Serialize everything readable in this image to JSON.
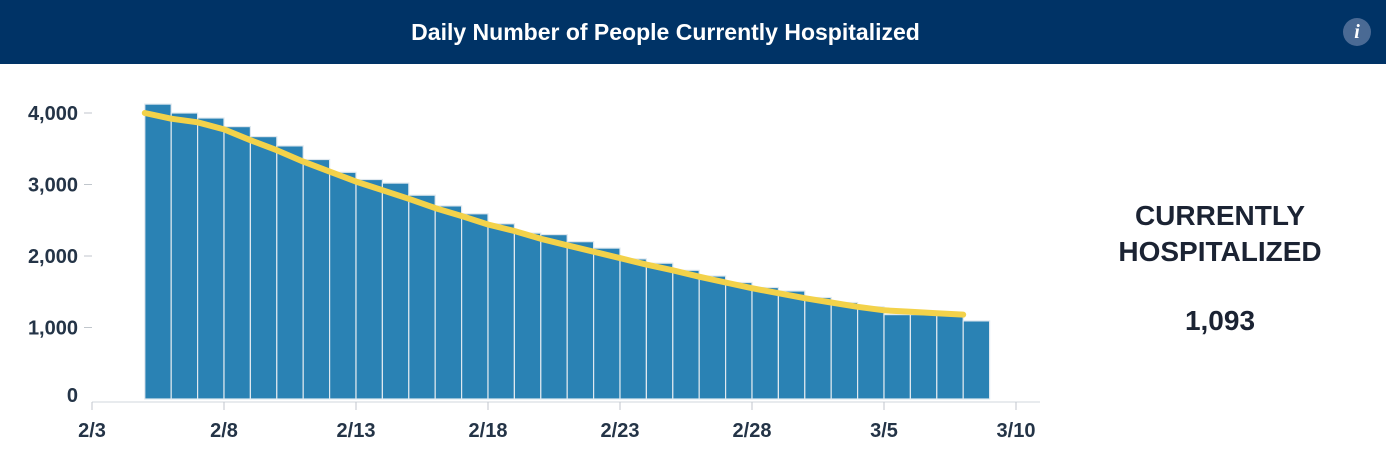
{
  "header": {
    "title": "Daily Number of People Currently Hospitalized",
    "info_icon": "info-icon",
    "info_glyph": "i"
  },
  "summary": {
    "label": "CURRENTLY\nHOSPITALIZED",
    "value": "1,093"
  },
  "colors": {
    "header_bg": "#003366",
    "bar": "#2a82b4",
    "bar_stroke": "#dfe8ef",
    "trend_line": "#f3d24a",
    "text": "#243447"
  },
  "chart_data": {
    "type": "bar",
    "x_start": "2/3",
    "x": [
      "2/5",
      "2/6",
      "2/7",
      "2/8",
      "2/9",
      "2/10",
      "2/11",
      "2/12",
      "2/13",
      "2/14",
      "2/15",
      "2/16",
      "2/17",
      "2/18",
      "2/19",
      "2/20",
      "2/21",
      "2/22",
      "2/23",
      "2/24",
      "2/25",
      "2/26",
      "2/27",
      "2/28",
      "3/1",
      "3/2",
      "3/3",
      "3/4",
      "3/5",
      "3/6",
      "3/7",
      "3/8"
    ],
    "series": [
      {
        "type": "bar",
        "values": [
          4125,
          4000,
          3930,
          3810,
          3670,
          3540,
          3350,
          3170,
          3070,
          3020,
          2850,
          2700,
          2590,
          2450,
          2320,
          2300,
          2200,
          2110,
          1960,
          1900,
          1800,
          1720,
          1630,
          1560,
          1510,
          1420,
          1350,
          1290,
          1180,
          1180,
          1170,
          1093
        ]
      },
      {
        "type": "line",
        "values": [
          4000,
          3920,
          3870,
          3770,
          3620,
          3480,
          3320,
          3180,
          3040,
          2920,
          2800,
          2670,
          2560,
          2440,
          2350,
          2240,
          2150,
          2060,
          1970,
          1880,
          1800,
          1710,
          1630,
          1550,
          1480,
          1410,
          1350,
          1290,
          1240,
          1220,
          1200,
          1180
        ]
      }
    ],
    "x_ticks": [
      "2/3",
      "2/8",
      "2/13",
      "2/18",
      "2/23",
      "2/28",
      "3/5",
      "3/10"
    ],
    "y_ticks": [
      "0",
      "1,000",
      "2,000",
      "3,000",
      "4,000"
    ],
    "ylim": [
      0,
      4000
    ],
    "grid": false
  }
}
